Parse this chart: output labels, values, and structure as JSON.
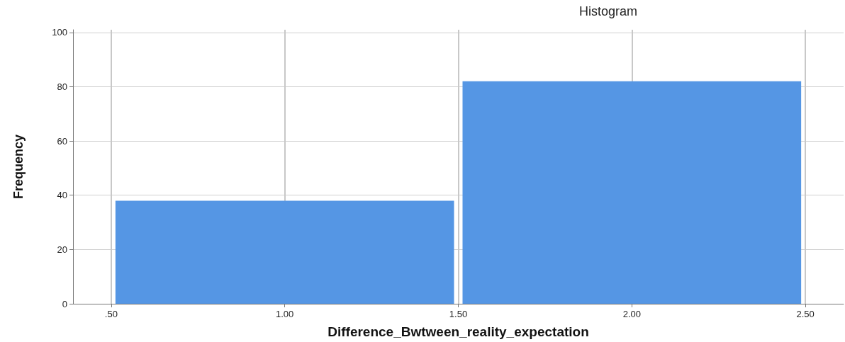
{
  "chart_data": {
    "type": "histogram",
    "title": "Histogram",
    "xlabel": "Difference_Bwtween_reality_expectation",
    "ylabel": "Frequency",
    "bins": [
      0.5,
      1.5,
      2.5
    ],
    "values": [
      38,
      82
    ],
    "color": "#5596e4",
    "xlim": [
      0.39,
      2.61
    ],
    "xticks": [
      {
        "value": 0.5,
        "label": ".50"
      },
      {
        "value": 1,
        "label": "1.00"
      },
      {
        "value": 1.5,
        "label": "1.50"
      },
      {
        "value": 2,
        "label": "2.00"
      },
      {
        "value": 2.5,
        "label": "2.50"
      }
    ],
    "ylim": [
      0,
      101
    ],
    "yticks": [
      0,
      20,
      40,
      60,
      80,
      100
    ],
    "grid": true
  }
}
